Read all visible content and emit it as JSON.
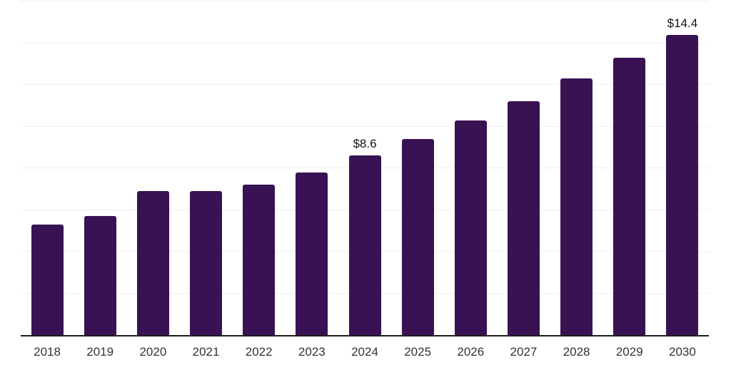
{
  "chart_data": {
    "type": "bar",
    "title": "",
    "xlabel": "",
    "ylabel": "",
    "categories": [
      "2018",
      "2019",
      "2020",
      "2021",
      "2022",
      "2023",
      "2024",
      "2025",
      "2026",
      "2027",
      "2028",
      "2029",
      "2030"
    ],
    "values": [
      5.3,
      5.7,
      6.9,
      6.9,
      7.2,
      7.8,
      8.6,
      9.4,
      10.3,
      11.2,
      12.3,
      13.3,
      14.4
    ],
    "value_prefix": "$",
    "annotations": [
      {
        "category": "2024",
        "text": "$8.6"
      },
      {
        "category": "2030",
        "text": "$14.4"
      }
    ],
    "ylim": [
      0,
      16
    ],
    "gridline_step": 2,
    "grid": true,
    "legend": false,
    "y_tick_labels_shown": false
  },
  "style": {
    "background_color": "#ffffff",
    "bar_color": "#381253",
    "gridline_color": "#efefef",
    "axis_line_color": "#1b1b1b",
    "x_label_color": "#333333",
    "value_label_color": "#121212"
  }
}
